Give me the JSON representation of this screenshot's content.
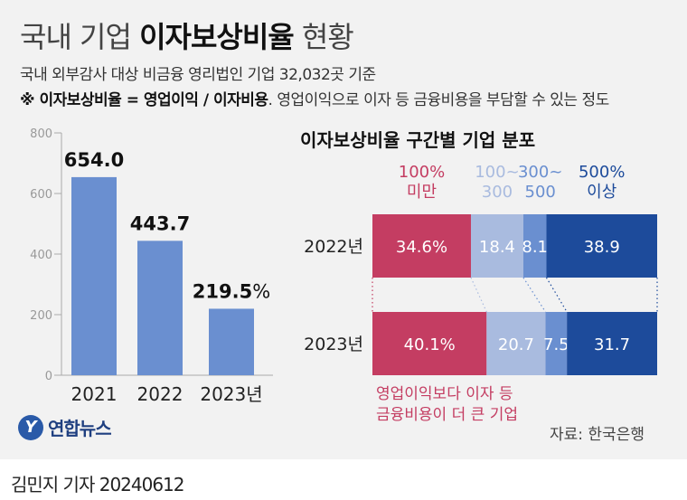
{
  "header": {
    "title_prefix": "국내 기업 ",
    "title_bold": "이자보상비율",
    "title_suffix": " 현황",
    "subtitle": "국내 외부감사 대상 비금융 영리법인 기업 32,032곳 기준",
    "note_bold": "※ 이자보상비율 = 영업이익 / 이자비용",
    "note_rest": ". 영업이익으로 이자 등 금융비용을 부담할 수 있는 정도"
  },
  "colors": {
    "bar": "#6a8fd0",
    "under100": "#c43d62",
    "r100_300": "#a9bbdf",
    "r300_500": "#6a8fd0",
    "over500": "#1d4b9b",
    "annotation": "#c43d62"
  },
  "chart_data": [
    {
      "type": "bar",
      "categories": [
        "2021",
        "2022",
        "2023년"
      ],
      "values": [
        654.0,
        443.7,
        219.5
      ],
      "value_labels": [
        "654.0",
        "443.7",
        "219.5%"
      ],
      "yticks": [
        0,
        200,
        400,
        600,
        800
      ],
      "ylim": [
        0,
        800
      ],
      "grid": false
    },
    {
      "type": "bar",
      "stacked": true,
      "horizontal": true,
      "title": "이자보상비율 구간별 기업 분포",
      "categories": [
        "2022년",
        "2023년"
      ],
      "series": [
        {
          "name": "100% 미만",
          "name_lines": [
            "100%",
            "미만"
          ],
          "values": [
            34.6,
            40.1
          ],
          "labels": [
            "34.6%",
            "40.1%"
          ]
        },
        {
          "name": "100~ 300",
          "name_lines": [
            "100~",
            "300"
          ],
          "values": [
            18.4,
            20.7
          ],
          "labels": [
            "18.4",
            "20.7"
          ]
        },
        {
          "name": "300~ 500",
          "name_lines": [
            "300~",
            "500"
          ],
          "values": [
            8.1,
            7.5
          ],
          "labels": [
            "8.1",
            "7.5"
          ]
        },
        {
          "name": "500% 이상",
          "name_lines": [
            "500%",
            "이상"
          ],
          "values": [
            38.9,
            31.7
          ],
          "labels": [
            "38.9",
            "31.7"
          ]
        }
      ],
      "annotation_lines": [
        "영업이익보다 이자 등",
        "금융비용이 더 큰 기업"
      ]
    }
  ],
  "logo": {
    "mark": "Y",
    "text": "연합뉴스"
  },
  "source": "자료: 한국은행",
  "byline": "김민지 기자  20240612"
}
